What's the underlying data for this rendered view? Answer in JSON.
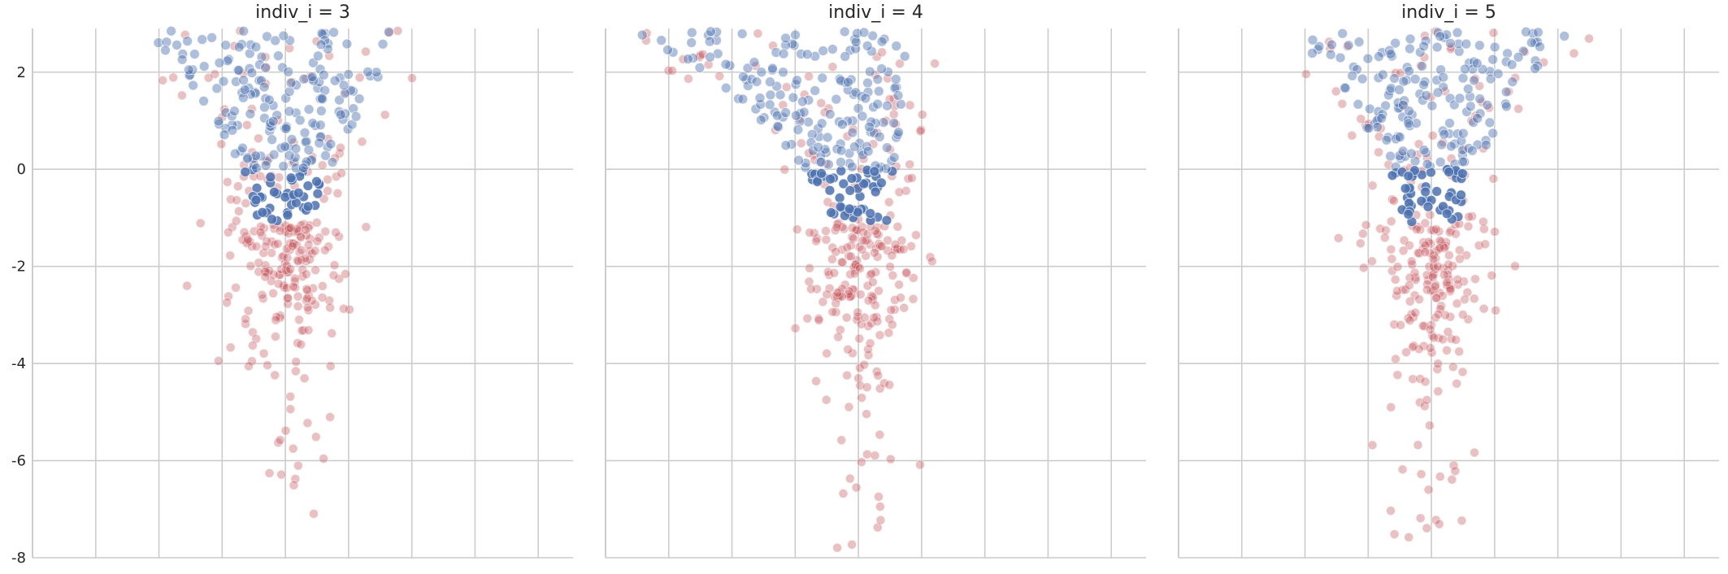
{
  "chart_data": [
    {
      "type": "scatter",
      "title": "indiv_i = 3",
      "ylim": [
        -8,
        2.9
      ],
      "yticks": [
        2,
        0,
        -2,
        -4,
        -6,
        -8
      ],
      "ytick_labels": [
        "2",
        "0",
        "-2",
        "-4",
        "-6",
        "-8"
      ],
      "x_gridlines": 8,
      "grid": true,
      "shape": "symmetric",
      "series": [
        {
          "color": "#4c72b0",
          "approx_points": 220,
          "y_range": [
            -1.1,
            2.9
          ]
        },
        {
          "color": "#c44e52",
          "approx_points": 260,
          "y_range": [
            -7.9,
            2.9
          ]
        }
      ]
    },
    {
      "type": "scatter",
      "title": "indiv_i = 4",
      "ylim": [
        -8,
        2.9
      ],
      "yticks": [
        2,
        0,
        -2,
        -4,
        -6,
        -8
      ],
      "ytick_labels": [
        "2",
        "0",
        "-2",
        "-4",
        "-6",
        "-8"
      ],
      "x_gridlines": 8,
      "grid": true,
      "shape": "left-skewed",
      "series": [
        {
          "color": "#4c72b0",
          "approx_points": 220,
          "y_range": [
            -1.1,
            2.9
          ]
        },
        {
          "color": "#c44e52",
          "approx_points": 260,
          "y_range": [
            -7.9,
            2.9
          ]
        }
      ]
    },
    {
      "type": "scatter",
      "title": "indiv_i = 5",
      "ylim": [
        -8,
        2.9
      ],
      "yticks": [
        2,
        0,
        -2,
        -4,
        -6,
        -8
      ],
      "ytick_labels": [
        "2",
        "0",
        "-2",
        "-4",
        "-6",
        "-8"
      ],
      "x_gridlines": 8,
      "grid": true,
      "shape": "symmetric",
      "series": [
        {
          "color": "#4c72b0",
          "approx_points": 220,
          "y_range": [
            -1.1,
            2.9
          ]
        },
        {
          "color": "#c44e52",
          "approx_points": 260,
          "y_range": [
            -7.9,
            2.9
          ]
        }
      ]
    }
  ],
  "colors": {
    "blue_series": "#4c72b0",
    "red_series": "#c44e52",
    "grid": "#cccccc",
    "text": "#262626"
  }
}
